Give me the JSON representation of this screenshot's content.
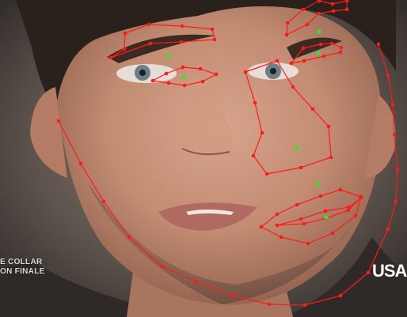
{
  "overlay": {
    "caption_lines": [
      "E COLLAR",
      "ON FINALE"
    ],
    "network_logo": "USA"
  },
  "colors": {
    "landmark_line": "#ff1a1a",
    "landmark_point": "#ff1a1a",
    "center_point": "#22ee22"
  }
}
